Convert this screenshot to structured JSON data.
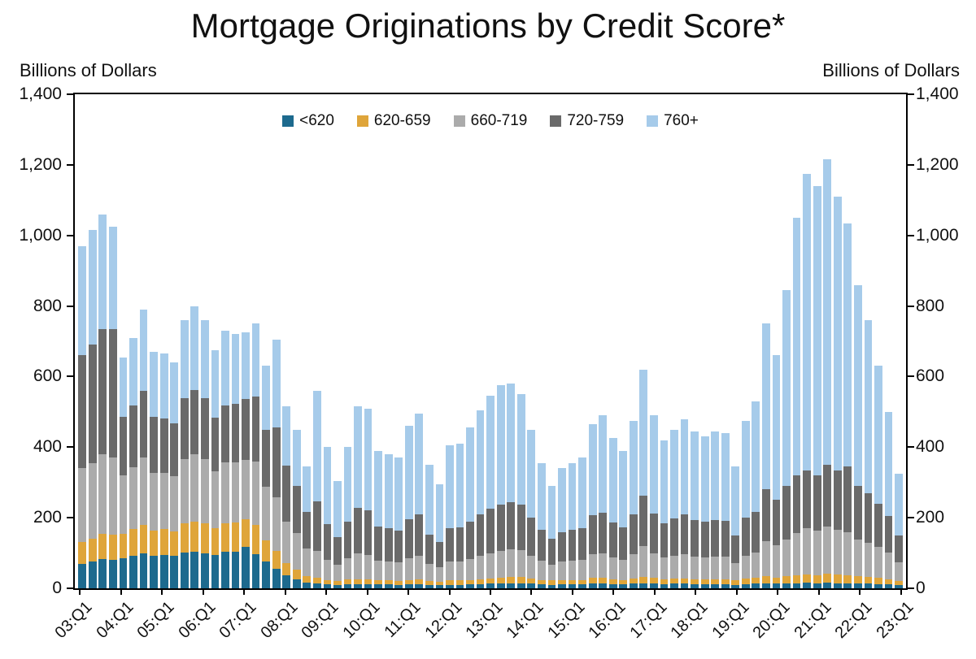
{
  "page": {
    "title": "Mortgage Originations by Credit Score*"
  },
  "labels": {
    "units_left": "Billions of Dollars",
    "units_right": "Billions of Dollars"
  },
  "chart_data": {
    "type": "bar",
    "stacked": true,
    "title": "Mortgage Originations by Credit Score*",
    "xlabel": "",
    "ylabel": "Billions of Dollars",
    "ylim": [
      0,
      1400
    ],
    "ytick_step": 200,
    "ytick_labels": [
      "0",
      "200",
      "400",
      "600",
      "800",
      "1,000",
      "1,200",
      "1,400"
    ],
    "grid": false,
    "legend_position": "top-center",
    "x_tick_every": 4,
    "categories": [
      "03:Q1",
      "03:Q2",
      "03:Q3",
      "03:Q4",
      "04:Q1",
      "04:Q2",
      "04:Q3",
      "04:Q4",
      "05:Q1",
      "05:Q2",
      "05:Q3",
      "05:Q4",
      "06:Q1",
      "06:Q2",
      "06:Q3",
      "06:Q4",
      "07:Q1",
      "07:Q2",
      "07:Q3",
      "07:Q4",
      "08:Q1",
      "08:Q2",
      "08:Q3",
      "08:Q4",
      "09:Q1",
      "09:Q2",
      "09:Q3",
      "09:Q4",
      "10:Q1",
      "10:Q2",
      "10:Q3",
      "10:Q4",
      "11:Q1",
      "11:Q2",
      "11:Q3",
      "11:Q4",
      "12:Q1",
      "12:Q2",
      "12:Q3",
      "12:Q4",
      "13:Q1",
      "13:Q2",
      "13:Q3",
      "13:Q4",
      "14:Q1",
      "14:Q2",
      "14:Q3",
      "14:Q4",
      "15:Q1",
      "15:Q2",
      "15:Q3",
      "15:Q4",
      "16:Q1",
      "16:Q2",
      "16:Q3",
      "16:Q4",
      "17:Q1",
      "17:Q2",
      "17:Q3",
      "17:Q4",
      "18:Q1",
      "18:Q2",
      "18:Q3",
      "18:Q4",
      "19:Q1",
      "19:Q2",
      "19:Q3",
      "19:Q4",
      "20:Q1",
      "20:Q2",
      "20:Q3",
      "20:Q4",
      "21:Q1",
      "21:Q2",
      "21:Q3",
      "21:Q4",
      "22:Q1",
      "22:Q2",
      "22:Q3",
      "22:Q4",
      "23:Q1"
    ],
    "series": [
      {
        "name": "<620",
        "color": "#1d6a8e",
        "values": [
          70,
          75,
          82,
          80,
          85,
          92,
          100,
          92,
          95,
          92,
          102,
          103,
          100,
          95,
          104,
          104,
          118,
          97,
          75,
          55,
          36,
          26,
          16,
          13,
          11,
          10,
          12,
          12,
          12,
          11,
          11,
          10,
          11,
          12,
          10,
          9,
          10,
          10,
          11,
          12,
          13,
          14,
          15,
          15,
          13,
          11,
          10,
          11,
          11,
          11,
          13,
          13,
          12,
          11,
          13,
          15,
          13,
          12,
          13,
          13,
          12,
          12,
          12,
          12,
          10,
          12,
          13,
          14,
          13,
          14,
          15,
          16,
          15,
          16,
          15,
          15,
          14,
          13,
          12,
          11,
          9
        ]
      },
      {
        "name": "620-659",
        "color": "#dfa53a",
        "values": [
          62,
          65,
          73,
          72,
          70,
          75,
          80,
          72,
          72,
          70,
          82,
          86,
          85,
          76,
          80,
          82,
          78,
          82,
          62,
          52,
          36,
          27,
          19,
          16,
          12,
          10,
          13,
          14,
          13,
          12,
          12,
          11,
          13,
          14,
          11,
          10,
          12,
          12,
          13,
          14,
          15,
          16,
          17,
          17,
          15,
          13,
          12,
          13,
          13,
          13,
          16,
          16,
          14,
          13,
          15,
          18,
          16,
          14,
          15,
          15,
          14,
          14,
          14,
          14,
          12,
          15,
          16,
          20,
          18,
          20,
          22,
          24,
          23,
          25,
          24,
          23,
          20,
          19,
          17,
          15,
          12
        ]
      },
      {
        "name": "660-719",
        "color": "#ababab",
        "values": [
          208,
          215,
          225,
          218,
          165,
          175,
          190,
          162,
          160,
          155,
          182,
          190,
          182,
          160,
          172,
          170,
          168,
          180,
          150,
          152,
          118,
          104,
          78,
          77,
          57,
          46,
          60,
          72,
          70,
          56,
          54,
          52,
          62,
          66,
          48,
          41,
          54,
          55,
          60,
          66,
          71,
          75,
          78,
          76,
          65,
          54,
          46,
          52,
          54,
          56,
          68,
          71,
          61,
          57,
          69,
          87,
          70,
          61,
          65,
          69,
          64,
          62,
          64,
          63,
          49,
          66,
          72,
          100,
          90,
          105,
          120,
          130,
          125,
          135,
          128,
          122,
          105,
          98,
          88,
          75,
          52
        ]
      },
      {
        "name": "720-759",
        "color": "#6a6a6a",
        "values": [
          320,
          335,
          355,
          365,
          165,
          175,
          190,
          160,
          155,
          150,
          172,
          182,
          172,
          152,
          162,
          166,
          172,
          184,
          163,
          196,
          158,
          133,
          104,
          140,
          102,
          80,
          104,
          130,
          126,
          96,
          93,
          90,
          110,
          118,
          84,
          71,
          95,
          96,
          106,
          117,
          126,
          132,
          135,
          130,
          107,
          87,
          72,
          83,
          87,
          90,
          110,
          115,
          99,
          92,
          112,
          143,
          114,
          98,
          105,
          112,
          104,
          100,
          104,
          103,
          79,
          107,
          116,
          146,
          129,
          151,
          163,
          165,
          157,
          174,
          168,
          185,
          151,
          140,
          123,
          104,
          77
        ]
      },
      {
        "name": "760+",
        "color": "#a6cbea",
        "values": [
          310,
          325,
          325,
          290,
          170,
          193,
          230,
          184,
          183,
          173,
          222,
          239,
          221,
          192,
          212,
          198,
          189,
          207,
          180,
          250,
          167,
          160,
          128,
          314,
          218,
          159,
          211,
          287,
          289,
          215,
          210,
          207,
          264,
          285,
          197,
          164,
          234,
          237,
          265,
          296,
          320,
          338,
          335,
          312,
          250,
          190,
          150,
          181,
          190,
          200,
          258,
          275,
          239,
          217,
          266,
          357,
          277,
          235,
          252,
          271,
          251,
          242,
          251,
          248,
          195,
          275,
          313,
          470,
          410,
          555,
          730,
          840,
          820,
          865,
          775,
          690,
          570,
          490,
          390,
          295,
          175
        ]
      }
    ]
  }
}
